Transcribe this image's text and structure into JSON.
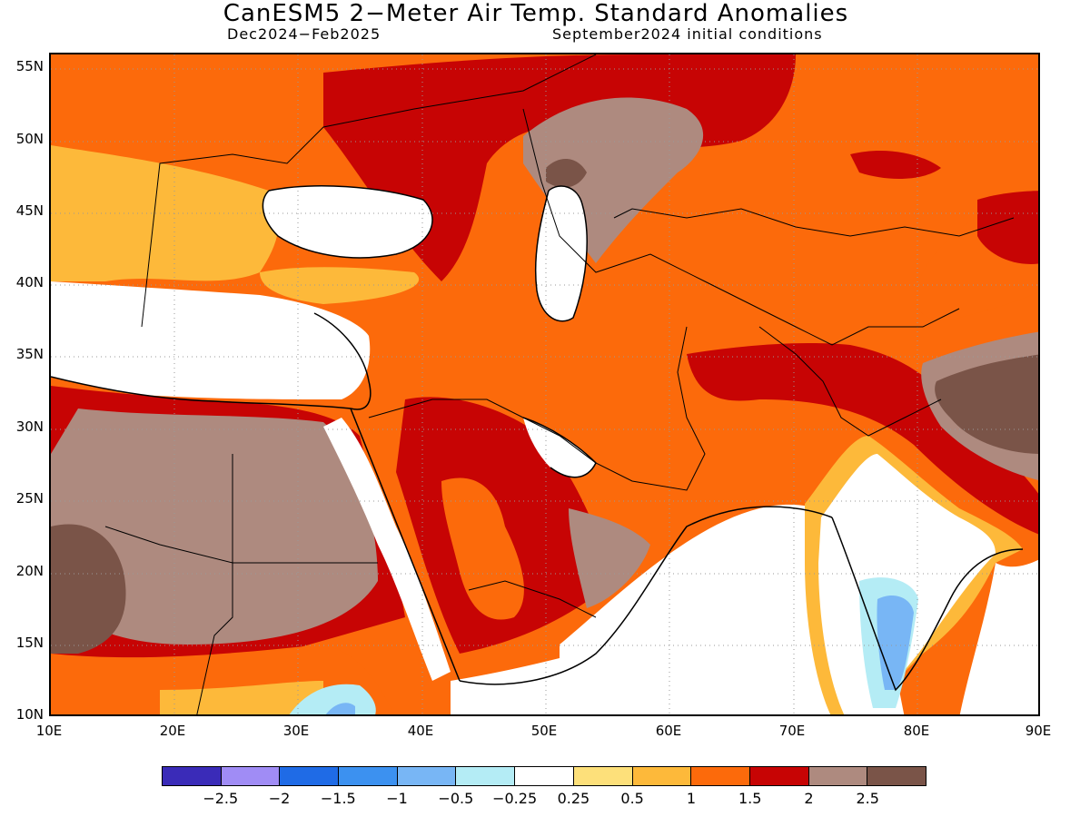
{
  "title": "CanESM5 2−Meter Air Temp. Standard Anomalies",
  "subtitle_left": "Dec2024−Feb2025",
  "subtitle_right": "September2024 initial conditions",
  "map": {
    "lon_range": [
      10,
      90
    ],
    "lat_range": [
      10,
      56
    ],
    "lat_ticks": [
      "55N",
      "50N",
      "45N",
      "40N",
      "35N",
      "30N",
      "25N",
      "20N",
      "15N",
      "10N"
    ],
    "lon_ticks": [
      "10E",
      "20E",
      "30E",
      "40E",
      "50E",
      "60E",
      "70E",
      "80E",
      "90E"
    ],
    "grid": "dotted"
  },
  "colorbar": {
    "colors": [
      "#3a2bb8",
      "#a08cf5",
      "#1f6be6",
      "#3c91f0",
      "#78b6f5",
      "#b4ecf5",
      "#ffffff",
      "#fde07a",
      "#fdb93a",
      "#fc6a0b",
      "#c70404",
      "#ae8a7f",
      "#7a5448"
    ],
    "labels": [
      "−2.5",
      "−2",
      "−1.5",
      "−1",
      "−0.5",
      "−0.25",
      "0.25",
      "0.5",
      "1",
      "1.5",
      "2",
      "2.5"
    ]
  }
}
